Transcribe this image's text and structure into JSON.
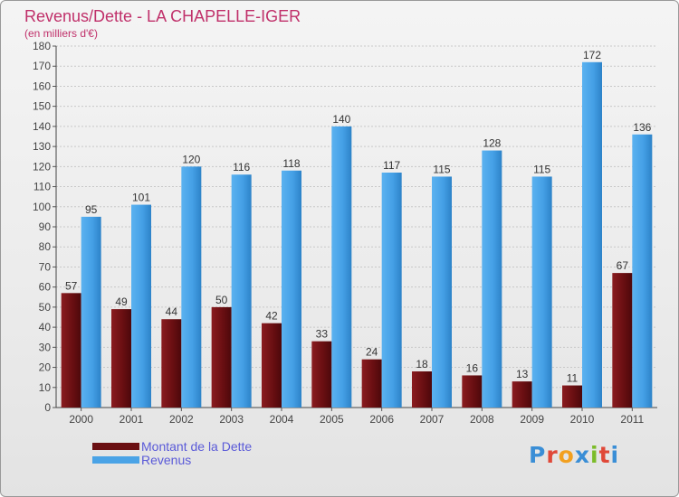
{
  "chart_data": {
    "type": "bar",
    "title": "Revenus/Dette - LA CHAPELLE-IGER",
    "subtitle": "(en milliers d'€)",
    "categories": [
      "2000",
      "2001",
      "2002",
      "2003",
      "2004",
      "2005",
      "2006",
      "2007",
      "2008",
      "2009",
      "2010",
      "2011"
    ],
    "series": [
      {
        "name": "Montant de la Dette",
        "color": "#7a1518",
        "values": [
          57,
          49,
          44,
          50,
          42,
          33,
          24,
          18,
          16,
          13,
          11,
          67
        ]
      },
      {
        "name": "Revenus",
        "color": "#4aa3e6",
        "values": [
          95,
          101,
          120,
          116,
          118,
          140,
          117,
          115,
          128,
          115,
          172,
          136
        ]
      }
    ],
    "ylim": [
      0,
      180
    ],
    "ytick_step": 10,
    "grid": true,
    "legend_position": "bottom-left"
  },
  "logo": {
    "letters": [
      "P",
      "r",
      "o",
      "x",
      "i",
      "t",
      "i"
    ]
  }
}
